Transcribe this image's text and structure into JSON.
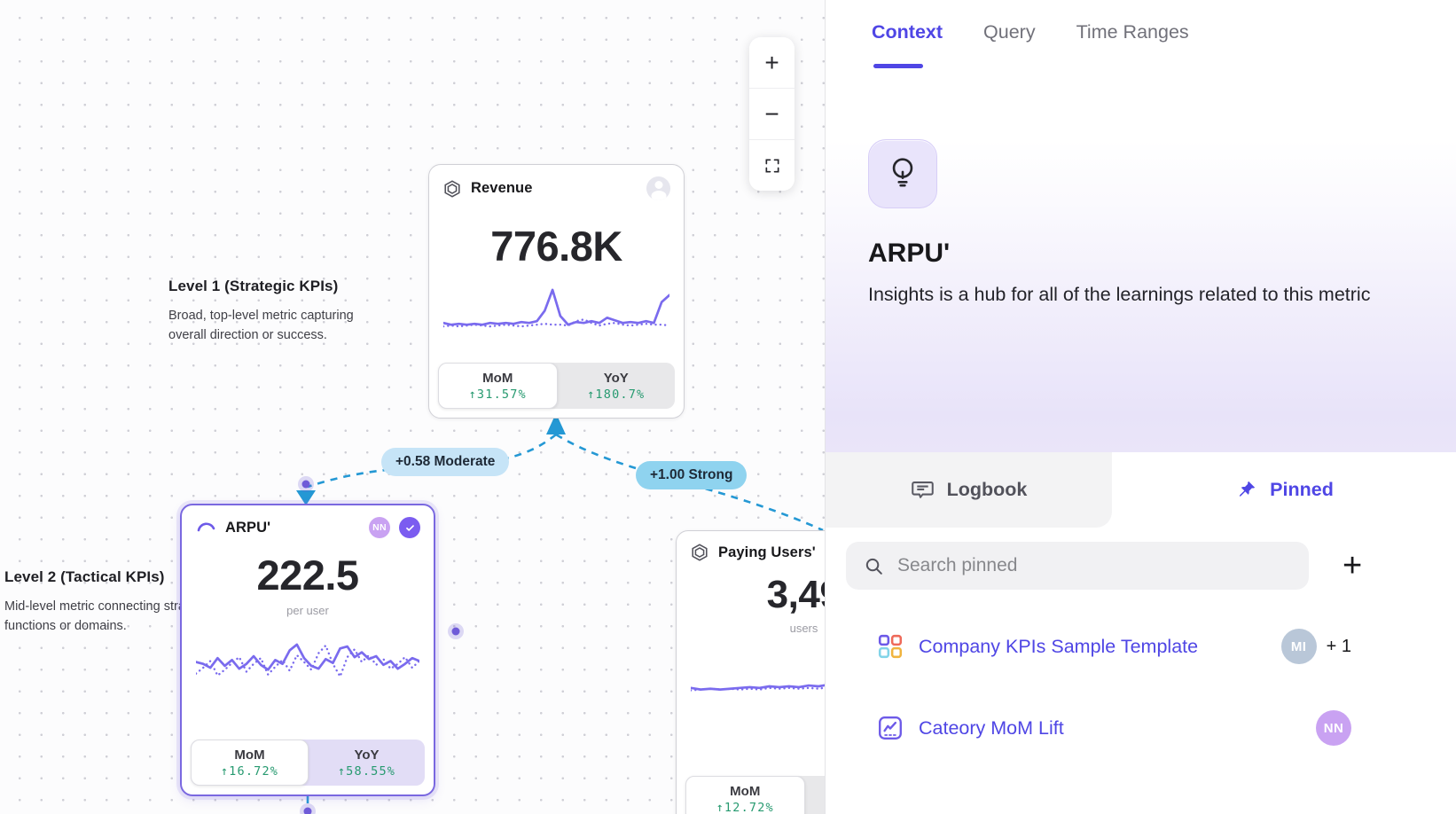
{
  "colors": {
    "accent": "#4f46e5",
    "sparkline": "#7a6bee",
    "positive": "#279a70",
    "edge": "#2498d4"
  },
  "canvas": {
    "zoom_controls": {
      "zoom_in": "+",
      "zoom_out": "−"
    },
    "levels": [
      {
        "title": "Level 1 (Strategic KPIs)",
        "description": "Broad, top-level metric capturing overall direction or success."
      },
      {
        "title": "Level 2 (Tactical KPIs)",
        "description": "Mid-level metric connecting strategy to functions or domains."
      }
    ],
    "edges": [
      {
        "label": "+0.58 Moderate"
      },
      {
        "label": "+1.00 Strong"
      }
    ],
    "nodes": [
      {
        "title": "Revenue",
        "value": "776.8K",
        "subtitle": "",
        "toggles": [
          {
            "label": "MoM",
            "value": "↑31.57%"
          },
          {
            "label": "YoY",
            "value": "↑180.7%"
          }
        ],
        "spark": {
          "solid": [
            44,
            46,
            45,
            46,
            45,
            46,
            44,
            45,
            44,
            45,
            43,
            44,
            42,
            30,
            6,
            36,
            46,
            43,
            44,
            42,
            44,
            38,
            41,
            44,
            43,
            44,
            42,
            44,
            20,
            12
          ],
          "dotted": [
            48,
            47,
            48,
            47,
            46,
            47,
            48,
            47,
            46,
            47,
            48,
            47,
            46,
            45,
            46,
            46,
            47,
            42,
            40,
            44,
            47,
            45,
            44,
            46,
            47,
            46,
            45,
            46,
            46,
            47
          ]
        }
      },
      {
        "title": "ARPU'",
        "value": "222.5",
        "subtitle": "per user",
        "badge": "NN",
        "toggles": [
          {
            "label": "MoM",
            "value": "↑16.72%"
          },
          {
            "label": "YoY",
            "value": "↑58.55%"
          }
        ],
        "spark": {
          "solid": [
            28,
            30,
            34,
            24,
            32,
            26,
            35,
            30,
            22,
            31,
            36,
            26,
            30,
            16,
            10,
            24,
            32,
            35,
            25,
            29,
            14,
            12,
            23,
            18,
            25,
            22,
            31,
            27,
            35,
            30,
            24,
            27
          ],
          "dotted": [
            40,
            34,
            27,
            42,
            36,
            29,
            23,
            38,
            30,
            24,
            41,
            33,
            26,
            37,
            21,
            28,
            36,
            19,
            11,
            30,
            43,
            23,
            15,
            28,
            21,
            31,
            25,
            35,
            30,
            23,
            34,
            27
          ]
        }
      },
      {
        "title": "Paying Users'",
        "value": "3,49",
        "subtitle": "users",
        "toggles": [
          {
            "label": "MoM",
            "value": "↑12.72%"
          }
        ],
        "spark": {
          "solid": [
            46,
            48,
            47,
            48,
            47,
            46,
            45,
            46,
            44,
            45,
            44,
            45,
            43,
            44,
            42,
            44,
            40,
            43,
            12,
            28,
            45,
            44,
            45,
            44
          ],
          "dotted": [
            49,
            48,
            47,
            48,
            47,
            48,
            47,
            48,
            46,
            47,
            46,
            47,
            46,
            47,
            45,
            46,
            45,
            46,
            46,
            45,
            46,
            47,
            46,
            47
          ]
        }
      }
    ]
  },
  "sidebar": {
    "tabs": [
      {
        "label": "Context"
      },
      {
        "label": "Query"
      },
      {
        "label": "Time Ranges"
      }
    ],
    "metric": {
      "title": "ARPU'",
      "description": "Insights is a hub for all of the learnings related to this metric"
    },
    "subtabs": {
      "logbook": "Logbook",
      "pinned": "Pinned"
    },
    "search": {
      "placeholder": "Search pinned"
    },
    "add_button": "+",
    "pinned_items": [
      {
        "label": "Company KPIs Sample Template",
        "avatar": "MI",
        "extra": "+ 1"
      },
      {
        "label": "Cateory MoM Lift",
        "avatar": "NN",
        "extra": ""
      }
    ]
  }
}
